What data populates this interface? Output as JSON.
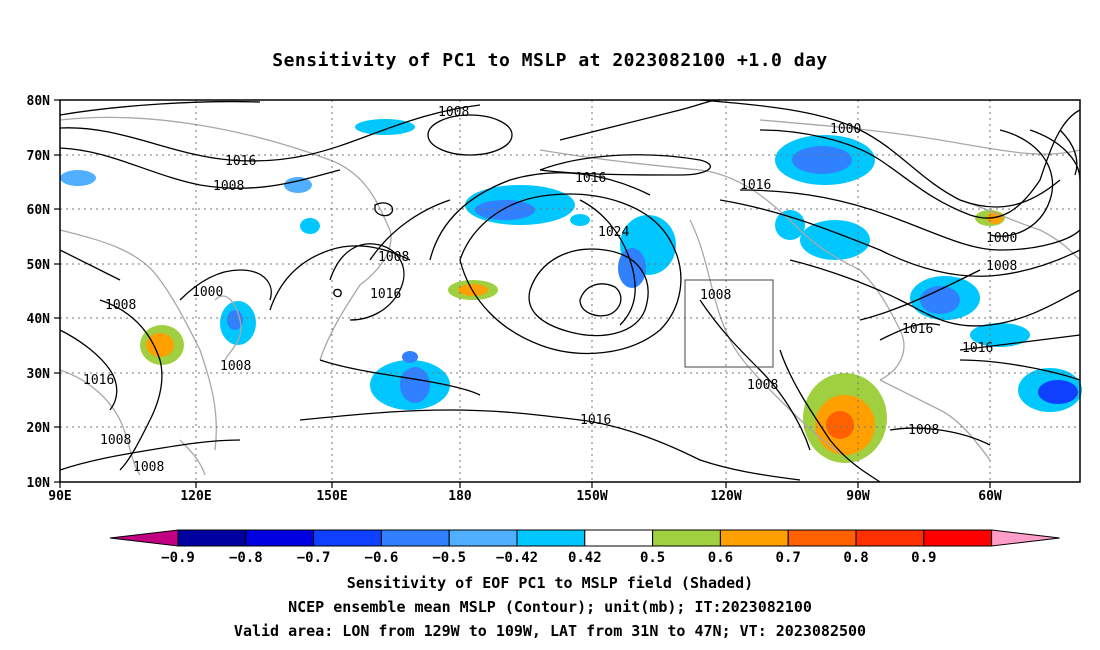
{
  "title": "Sensitivity of PC1 to MSLP at 2023082100 +1.0 day",
  "axes": {
    "lat_ticks": [
      "80N",
      "70N",
      "60N",
      "50N",
      "40N",
      "30N",
      "20N",
      "10N"
    ],
    "lon_ticks": [
      "90E",
      "120E",
      "150E",
      "180",
      "150W",
      "120W",
      "90W",
      "60W"
    ]
  },
  "contour_labels": [
    {
      "label": "1008"
    },
    {
      "label": "1016"
    },
    {
      "label": "1008"
    },
    {
      "label": "1008"
    },
    {
      "label": "1016"
    },
    {
      "label": "1024"
    },
    {
      "label": "1000"
    },
    {
      "label": "1016"
    },
    {
      "label": "1000"
    },
    {
      "label": "1008"
    },
    {
      "label": "1008"
    },
    {
      "label": "1008"
    },
    {
      "label": "1016"
    },
    {
      "label": "1016"
    },
    {
      "label": "1008"
    },
    {
      "label": "1008"
    },
    {
      "label": "1016"
    },
    {
      "label": "1008"
    },
    {
      "label": "1016"
    },
    {
      "label": "1008"
    },
    {
      "label": "1016"
    },
    {
      "label": "1008"
    },
    {
      "label": "1008"
    }
  ],
  "colorbar": {
    "labels": [
      "-0.9",
      "-0.8",
      "-0.7",
      "-0.6",
      "-0.5",
      "-0.42",
      "0.42",
      "0.5",
      "0.6",
      "0.7",
      "0.8",
      "0.9"
    ],
    "colors": [
      "#0000a0",
      "#0000e0",
      "#1040ff",
      "#3080ff",
      "#50b0ff",
      "#00c8ff",
      "#ffffff",
      "#a0d040",
      "#ffa000",
      "#ff6000",
      "#ff3000",
      "#ff0000"
    ],
    "under_color": "#c00080",
    "over_color": "#ff9ec8"
  },
  "captions": [
    "Sensitivity of EOF PC1 to MSLP field (Shaded)",
    "NCEP ensemble mean MSLP (Contour); unit(mb); IT:2023082100",
    "Valid area: LON from 129W to 109W, LAT from 31N to 47N; VT: 2023082500"
  ]
}
